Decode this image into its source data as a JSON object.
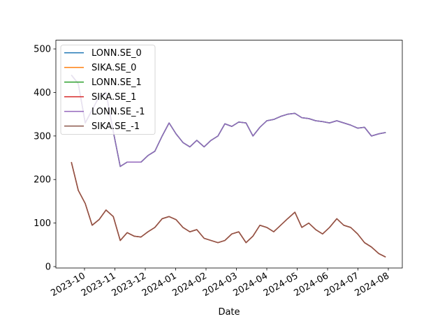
{
  "chart_data": {
    "type": "line",
    "xlabel": "Date",
    "x": [
      2023.714,
      2023.733,
      2023.752,
      2023.771,
      2023.79,
      2023.809,
      2023.829,
      2023.848,
      2023.867,
      2023.886,
      2023.905,
      2023.924,
      2023.943,
      2023.963,
      2023.982,
      2024.001,
      2024.02,
      2024.039,
      2024.058,
      2024.078,
      2024.097,
      2024.116,
      2024.135,
      2024.154,
      2024.173,
      2024.193,
      2024.212,
      2024.231,
      2024.25,
      2024.269,
      2024.288,
      2024.307,
      2024.327,
      2024.346,
      2024.365,
      2024.384,
      2024.403,
      2024.422,
      2024.442,
      2024.461,
      2024.48,
      2024.499,
      2024.518,
      2024.537,
      2024.557,
      2024.576
    ],
    "series": [
      {
        "name": "LONN.SE_0",
        "color": "#1f77b4",
        "values": [
          440,
          420,
          330,
          360,
          390,
          400,
          310,
          230,
          240,
          240,
          240,
          255,
          265,
          300,
          330,
          305,
          285,
          275,
          290,
          275,
          290,
          300,
          328,
          322,
          332,
          330,
          300,
          320,
          335,
          338,
          345,
          350,
          352,
          342,
          340,
          335,
          333,
          330,
          335,
          330,
          325,
          318,
          320,
          300,
          305,
          308
        ]
      },
      {
        "name": "SIKA.SE_0",
        "color": "#ff7f0e",
        "values": [
          240,
          175,
          145,
          95,
          108,
          130,
          115,
          60,
          78,
          70,
          68,
          80,
          90,
          110,
          115,
          108,
          90,
          80,
          85,
          65,
          60,
          55,
          60,
          75,
          80,
          55,
          70,
          95,
          90,
          80,
          95,
          110,
          125,
          90,
          100,
          85,
          75,
          90,
          110,
          95,
          90,
          75,
          55,
          45,
          30,
          22
        ]
      },
      {
        "name": "LONN.SE_1",
        "color": "#2ca02c",
        "values": [
          440,
          420,
          330,
          360,
          390,
          400,
          310,
          230,
          240,
          240,
          240,
          255,
          265,
          300,
          330,
          305,
          285,
          275,
          290,
          275,
          290,
          300,
          328,
          322,
          332,
          330,
          300,
          320,
          335,
          338,
          345,
          350,
          352,
          342,
          340,
          335,
          333,
          330,
          335,
          330,
          325,
          318,
          320,
          300,
          305,
          308
        ]
      },
      {
        "name": "SIKA.SE_1",
        "color": "#d62728",
        "values": [
          240,
          175,
          145,
          95,
          108,
          130,
          115,
          60,
          78,
          70,
          68,
          80,
          90,
          110,
          115,
          108,
          90,
          80,
          85,
          65,
          60,
          55,
          60,
          75,
          80,
          55,
          70,
          95,
          90,
          80,
          95,
          110,
          125,
          90,
          100,
          85,
          75,
          90,
          110,
          95,
          90,
          75,
          55,
          45,
          30,
          22
        ]
      },
      {
        "name": "LONN.SE_-1",
        "color": "#9467bd",
        "values": [
          440,
          420,
          330,
          360,
          390,
          400,
          310,
          230,
          240,
          240,
          240,
          255,
          265,
          300,
          330,
          305,
          285,
          275,
          290,
          275,
          290,
          300,
          328,
          322,
          332,
          330,
          300,
          320,
          335,
          338,
          345,
          350,
          352,
          342,
          340,
          335,
          333,
          330,
          335,
          330,
          325,
          318,
          320,
          300,
          305,
          308
        ]
      },
      {
        "name": "SIKA.SE_-1",
        "color": "#8c564b",
        "values": [
          240,
          175,
          145,
          95,
          108,
          130,
          115,
          60,
          78,
          70,
          68,
          80,
          90,
          110,
          115,
          108,
          90,
          80,
          85,
          65,
          60,
          55,
          60,
          75,
          80,
          55,
          70,
          95,
          90,
          80,
          95,
          110,
          125,
          90,
          100,
          85,
          75,
          90,
          110,
          95,
          90,
          75,
          55,
          45,
          30,
          22
        ]
      }
    ],
    "xlim": [
      2023.6715,
      2024.6216
    ],
    "xticks": [
      {
        "value": 2023.75,
        "label": "2023-10"
      },
      {
        "value": 2023.8333,
        "label": "2023-11"
      },
      {
        "value": 2023.9167,
        "label": "2023-12"
      },
      {
        "value": 2024.0,
        "label": "2024-01"
      },
      {
        "value": 2024.0833,
        "label": "2024-02"
      },
      {
        "value": 2024.1667,
        "label": "2024-03"
      },
      {
        "value": 2024.25,
        "label": "2024-04"
      },
      {
        "value": 2024.3333,
        "label": "2024-05"
      },
      {
        "value": 2024.4167,
        "label": "2024-06"
      },
      {
        "value": 2024.5,
        "label": "2024-07"
      },
      {
        "value": 2024.5833,
        "label": "2024-08"
      }
    ],
    "ylim": [
      -3.2,
      520
    ],
    "yticks": [
      0,
      100,
      200,
      300,
      400,
      500
    ],
    "legend": "upper left"
  }
}
